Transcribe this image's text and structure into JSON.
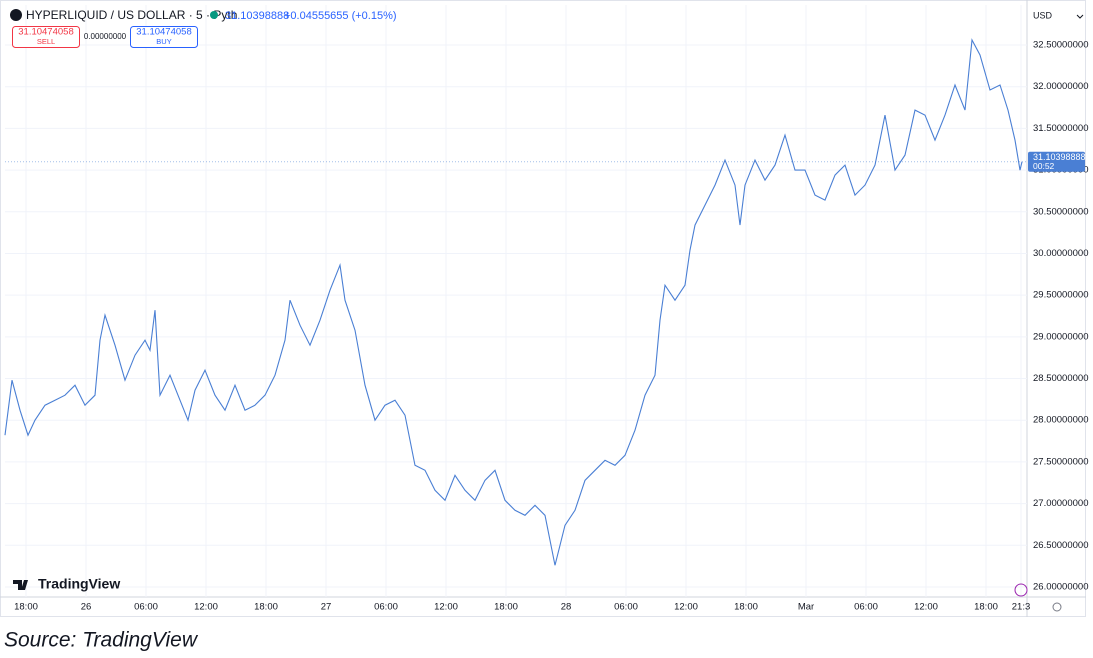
{
  "chart_data": {
    "type": "line",
    "title": "HYPERLIQUID / US DOLLAR · 5 · Pyth",
    "last_value": "31.10398888",
    "change": "+0.04555655 (+0.15%)",
    "sell_price": "31.10474058",
    "sell_label": "SELL",
    "spread": "0.00000000",
    "buy_price": "31.10474058",
    "buy_label": "BUY",
    "currency": "USD",
    "price_tag": "31.10398888",
    "countdown": "00:52",
    "logo": "TradingView",
    "source": "Source: TradingView",
    "grid": true,
    "xlim": [
      15.9,
      118.1
    ],
    "ylim": [
      25.88,
      32.98
    ],
    "xticks": [
      {
        "value": 18,
        "label": "18:00"
      },
      {
        "value": 24,
        "label": "26"
      },
      {
        "value": 30,
        "label": "06:00"
      },
      {
        "value": 36,
        "label": "12:00"
      },
      {
        "value": 42,
        "label": "18:00"
      },
      {
        "value": 48,
        "label": "27"
      },
      {
        "value": 54,
        "label": "06:00"
      },
      {
        "value": 60,
        "label": "12:00"
      },
      {
        "value": 66,
        "label": "18:00"
      },
      {
        "value": 72,
        "label": "28"
      },
      {
        "value": 78,
        "label": "06:00"
      },
      {
        "value": 84,
        "label": "12:00"
      },
      {
        "value": 90,
        "label": "18:00"
      },
      {
        "value": 96,
        "label": "Mar"
      },
      {
        "value": 102,
        "label": "06:00"
      },
      {
        "value": 108,
        "label": "12:00"
      },
      {
        "value": 114,
        "label": "18:00"
      },
      {
        "value": 117.5,
        "label": "21:3"
      }
    ],
    "yticks": [
      {
        "value": 26.0,
        "label": "26.00000000"
      },
      {
        "value": 26.5,
        "label": "26.50000000"
      },
      {
        "value": 27.0,
        "label": "27.00000000"
      },
      {
        "value": 27.5,
        "label": "27.50000000"
      },
      {
        "value": 28.0,
        "label": "28.00000000"
      },
      {
        "value": 28.5,
        "label": "28.50000000"
      },
      {
        "value": 29.0,
        "label": "29.00000000"
      },
      {
        "value": 29.5,
        "label": "29.50000000"
      },
      {
        "value": 30.0,
        "label": "30.00000000"
      },
      {
        "value": 30.5,
        "label": "30.50000000"
      },
      {
        "value": 31.0,
        "label": "31.00000000"
      },
      {
        "value": 31.5,
        "label": "31.50000000"
      },
      {
        "value": 32.0,
        "label": "32.00000000"
      },
      {
        "value": 32.5,
        "label": "32.50000000"
      }
    ],
    "x": [
      15.9,
      16.6,
      17.4,
      18.2,
      18.9,
      19.9,
      20.9,
      21.9,
      22.9,
      23.9,
      24.9,
      25.4,
      25.9,
      26.9,
      27.9,
      28.9,
      29.9,
      30.4,
      30.9,
      31.4,
      32.4,
      33.4,
      34.2,
      34.9,
      35.9,
      36.9,
      37.9,
      38.9,
      39.9,
      40.9,
      41.9,
      42.9,
      43.9,
      44.4,
      45.4,
      46.4,
      47.4,
      48.4,
      49.4,
      49.9,
      50.9,
      51.9,
      52.9,
      53.9,
      54.9,
      55.9,
      56.9,
      57.9,
      58.9,
      59.9,
      60.9,
      61.9,
      62.9,
      63.9,
      64.9,
      65.9,
      66.9,
      67.9,
      68.9,
      69.9,
      70.9,
      71.9,
      72.9,
      73.9,
      74.9,
      75.9,
      76.9,
      77.9,
      78.9,
      79.9,
      80.9,
      81.4,
      81.9,
      82.9,
      83.9,
      84.4,
      84.9,
      85.9,
      86.9,
      87.9,
      88.9,
      89.4,
      89.9,
      90.9,
      91.9,
      92.9,
      93.9,
      94.9,
      95.9,
      96.9,
      97.9,
      98.9,
      99.9,
      100.9,
      101.9,
      102.9,
      103.9,
      104.9,
      105.9,
      106.9,
      107.9,
      108.9,
      109.9,
      110.9,
      111.9,
      112.6,
      113.4,
      114.4,
      115.4,
      116.2,
      116.9,
      117.4,
      117.6
    ],
    "series": [
      {
        "color": "#4a7fd4",
        "values": [
          27.82,
          28.48,
          28.12,
          27.82,
          28.0,
          28.18,
          28.24,
          28.3,
          28.42,
          28.18,
          28.3,
          28.96,
          29.26,
          28.9,
          28.48,
          28.78,
          28.96,
          28.84,
          29.32,
          28.3,
          28.54,
          28.24,
          28.0,
          28.36,
          28.6,
          28.3,
          28.12,
          28.42,
          28.12,
          28.18,
          28.3,
          28.54,
          28.96,
          29.44,
          29.14,
          28.9,
          29.2,
          29.56,
          29.86,
          29.44,
          29.08,
          28.42,
          28.0,
          28.18,
          28.24,
          28.06,
          27.46,
          27.4,
          27.16,
          27.04,
          27.34,
          27.16,
          27.04,
          27.28,
          27.4,
          27.04,
          26.92,
          26.86,
          26.98,
          26.86,
          26.26,
          26.74,
          26.92,
          27.28,
          27.4,
          27.52,
          27.46,
          27.58,
          27.88,
          28.3,
          28.54,
          29.2,
          29.62,
          29.44,
          29.62,
          30.04,
          30.34,
          30.58,
          30.82,
          31.12,
          30.82,
          30.34,
          30.82,
          31.12,
          30.88,
          31.06,
          31.42,
          31.0,
          31.0,
          30.7,
          30.64,
          30.94,
          31.06,
          30.7,
          30.82,
          31.06,
          31.66,
          31.0,
          31.18,
          31.72,
          31.66,
          31.36,
          31.66,
          32.02,
          31.72,
          32.56,
          32.38,
          31.96,
          32.02,
          31.72,
          31.36,
          31.0,
          31.1
        ]
      }
    ]
  }
}
